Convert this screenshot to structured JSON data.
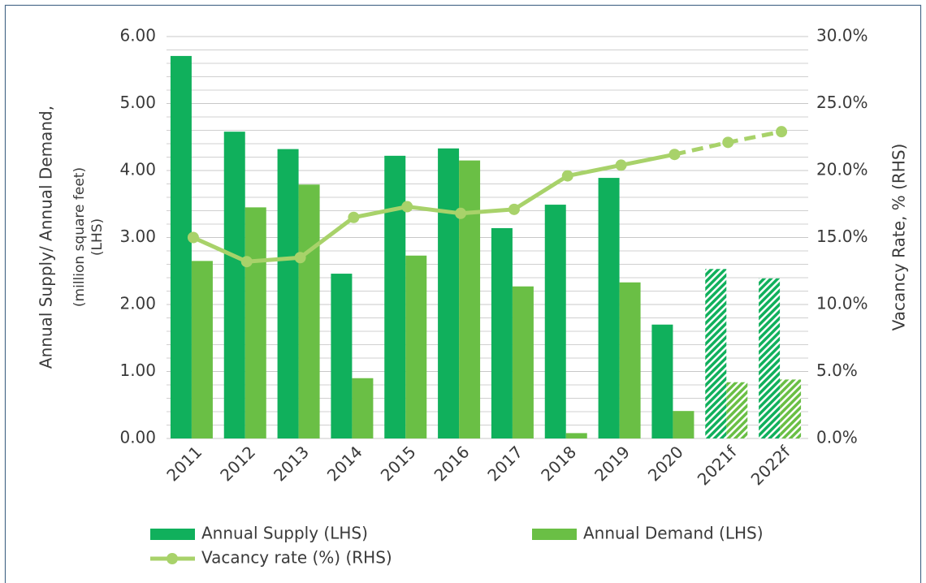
{
  "chart_data": {
    "type": "bar",
    "categories": [
      "2011",
      "2012",
      "2013",
      "2014",
      "2015",
      "2016",
      "2017",
      "2018",
      "2019",
      "2020",
      "2021f",
      "2022f"
    ],
    "forecast": [
      false,
      false,
      false,
      false,
      false,
      false,
      false,
      false,
      false,
      false,
      true,
      true
    ],
    "series": [
      {
        "name": "Annual Supply (LHS)",
        "color": "#10b05c",
        "values": [
          5.71,
          4.58,
          4.32,
          2.46,
          4.22,
          4.33,
          3.14,
          3.49,
          3.89,
          1.7,
          2.53,
          2.39
        ]
      },
      {
        "name": "Annual Demand (LHS)",
        "color": "#6abf45",
        "values": [
          2.65,
          3.45,
          3.79,
          0.9,
          2.73,
          4.15,
          2.27,
          0.08,
          2.33,
          0.41,
          0.84,
          0.88
        ]
      },
      {
        "name": "Vacancy rate (%) (RHS)",
        "type": "line",
        "axis": "y2",
        "color": "#a8d26a",
        "values": [
          15.0,
          13.2,
          13.5,
          16.5,
          17.3,
          16.8,
          17.1,
          19.6,
          20.4,
          21.2,
          22.1,
          22.9
        ]
      }
    ],
    "ylabel": [
      "Annual Supply/ Annual Demand,",
      "(million square feet)",
      "(LHS)"
    ],
    "y2label": "Vacancy Rate, % (RHS)",
    "ylim": [
      0,
      6
    ],
    "yticks": [
      {
        "value": 0,
        "label": "0.00"
      },
      {
        "value": 1,
        "label": "1.00"
      },
      {
        "value": 2,
        "label": "2.00"
      },
      {
        "value": 3,
        "label": "3.00"
      },
      {
        "value": 4,
        "label": "4.00"
      },
      {
        "value": 5,
        "label": "5.00"
      },
      {
        "value": 6,
        "label": "6.00"
      }
    ],
    "minor_yticks": [
      0.2,
      0.4,
      0.6,
      0.8,
      1.2,
      1.4,
      1.6,
      1.8,
      2.2,
      2.4,
      2.6,
      2.8,
      3.2,
      3.4,
      3.6,
      3.8,
      4.2,
      4.4,
      4.6,
      4.8,
      5.2,
      5.4,
      5.6,
      5.8
    ],
    "y2lim": [
      0,
      30
    ],
    "y2ticks": [
      {
        "value": 0,
        "label": "0.0%"
      },
      {
        "value": 5,
        "label": "5.0%"
      },
      {
        "value": 10,
        "label": "10.0%"
      },
      {
        "value": 15,
        "label": "15.0%"
      },
      {
        "value": 20,
        "label": "20.0%"
      },
      {
        "value": 25,
        "label": "25.0%"
      },
      {
        "value": 30,
        "label": "30.0%"
      }
    ],
    "grid": true,
    "legend": "bottom"
  }
}
